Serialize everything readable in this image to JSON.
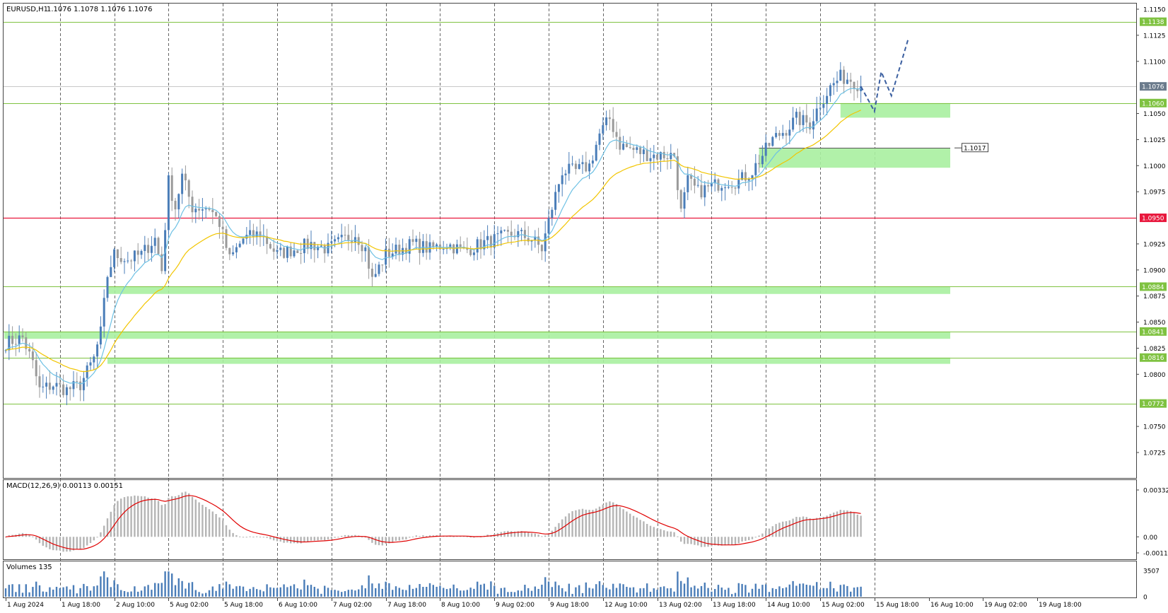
{
  "symbol_label": "EURUSD,H1",
  "ohlc_label": "1.1076 1.1078 1.1076 1.1076",
  "macd_label": "MACD(12,26,9) 0.00113 0.00151",
  "volume_label": "Volumes 135",
  "colors": {
    "bull": "#4a7db8",
    "bear": "#9a9a9a",
    "signal": "#e00000",
    "ema_fast": "#6ec1e4",
    "ema_slow": "#f2c500",
    "level_line": "#7fc241",
    "red_level": "#e8173c",
    "zone": "#a8f0a0",
    "current_price_tag": "#6b7b8c",
    "forecast": "#3b5fa0"
  },
  "chart_data": {
    "type": "candlestick",
    "ylim": [
      1.0715,
      1.1165
    ],
    "price_ticks": [
      "1.1150",
      "1.1125",
      "1.1100",
      "1.1050",
      "1.1025",
      "1.1000",
      "1.0975",
      "1.0925",
      "1.0900",
      "1.0875",
      "1.0850",
      "1.0825",
      "1.0800",
      "1.0750",
      "1.0725"
    ],
    "time_labels": [
      "1 Aug 2024",
      "1 Aug 18:00",
      "2 Aug 10:00",
      "5 Aug 02:00",
      "5 Aug 18:00",
      "6 Aug 10:00",
      "7 Aug 02:00",
      "7 Aug 18:00",
      "8 Aug 10:00",
      "9 Aug 02:00",
      "9 Aug 18:00",
      "12 Aug 10:00",
      "13 Aug 02:00",
      "13 Aug 18:00",
      "14 Aug 10:00",
      "15 Aug 02:00",
      "15 Aug 18:00",
      "16 Aug 10:00",
      "19 Aug 02:00",
      "19 Aug 18:00"
    ],
    "level_tags": [
      {
        "value": 1.1138,
        "label": "1.1138"
      },
      {
        "value": 1.106,
        "label": "1.1060"
      },
      {
        "value": 1.0884,
        "label": "1.0884"
      },
      {
        "value": 1.0841,
        "label": "1.0841"
      },
      {
        "value": 1.0816,
        "label": "1.0816"
      },
      {
        "value": 1.0772,
        "label": "1.0772"
      }
    ],
    "red_level": {
      "value": 1.095,
      "label": "1.0950"
    },
    "current_price": {
      "value": 1.1076,
      "label": "1.1076"
    },
    "callout": {
      "value": 1.1017,
      "label": "1.1017"
    },
    "zones": [
      {
        "from": 1.0877,
        "to": 1.0884
      },
      {
        "from": 1.0834,
        "to": 1.0841
      },
      {
        "from": 1.081,
        "to": 1.0816
      },
      {
        "from": 1.1046,
        "to": 1.106
      },
      {
        "from": 1.0998,
        "to": 1.1017
      }
    ],
    "anchors": [
      [
        0,
        1.083
      ],
      [
        5,
        1.0835
      ],
      [
        8,
        1.081
      ],
      [
        10,
        1.0785
      ],
      [
        14,
        1.079
      ],
      [
        18,
        1.0785
      ],
      [
        22,
        1.079
      ],
      [
        26,
        1.0815
      ],
      [
        28,
        1.084
      ],
      [
        30,
        1.0895
      ],
      [
        32,
        1.0915
      ],
      [
        36,
        1.091
      ],
      [
        40,
        1.0915
      ],
      [
        44,
        1.093
      ],
      [
        46,
        1.09
      ],
      [
        48,
        1.0985
      ],
      [
        50,
        1.096
      ],
      [
        52,
        1.099
      ],
      [
        55,
        1.096
      ],
      [
        60,
        1.096
      ],
      [
        63,
        1.0945
      ],
      [
        66,
        1.091
      ],
      [
        70,
        1.093
      ],
      [
        75,
        1.0935
      ],
      [
        80,
        1.0915
      ],
      [
        85,
        1.092
      ],
      [
        90,
        1.0925
      ],
      [
        95,
        1.092
      ],
      [
        100,
        1.093
      ],
      [
        103,
        1.0935
      ],
      [
        106,
        1.092
      ],
      [
        108,
        1.089
      ],
      [
        112,
        1.0915
      ],
      [
        116,
        1.092
      ],
      [
        120,
        1.0925
      ],
      [
        125,
        1.092
      ],
      [
        130,
        1.0925
      ],
      [
        135,
        1.0918
      ],
      [
        140,
        1.0925
      ],
      [
        145,
        1.093
      ],
      [
        150,
        1.0935
      ],
      [
        155,
        1.093
      ],
      [
        158,
        1.092
      ],
      [
        161,
        1.096
      ],
      [
        164,
        1.0995
      ],
      [
        168,
        1.0995
      ],
      [
        172,
        1.1
      ],
      [
        175,
        1.103
      ],
      [
        178,
        1.1045
      ],
      [
        181,
        1.102
      ],
      [
        185,
        1.1015
      ],
      [
        190,
        1.101
      ],
      [
        193,
        1.101
      ],
      [
        197,
        1.101
      ],
      [
        199,
        1.0955
      ],
      [
        201,
        1.0985
      ],
      [
        204,
        1.0975
      ],
      [
        208,
        1.098
      ],
      [
        212,
        1.0985
      ],
      [
        216,
        1.0985
      ],
      [
        220,
        1.0995
      ],
      [
        223,
        1.101
      ],
      [
        226,
        1.1025
      ],
      [
        230,
        1.1035
      ],
      [
        233,
        1.1045
      ],
      [
        237,
        1.104
      ],
      [
        240,
        1.106
      ],
      [
        243,
        1.1075
      ],
      [
        246,
        1.1085
      ],
      [
        249,
        1.1083
      ],
      [
        252,
        1.1076
      ]
    ],
    "candle_count": 253,
    "forecast": [
      {
        "bar": 252,
        "price": 1.1076
      },
      {
        "bar": 256,
        "price": 1.1052
      },
      {
        "bar": 258,
        "price": 1.109
      },
      {
        "bar": 261,
        "price": 1.1067
      },
      {
        "bar": 266,
        "price": 1.1122
      }
    ],
    "macd": {
      "ylim": [
        -0.00114,
        0.00332
      ],
      "ticks": [
        {
          "value": 0.00332,
          "label": "0.00332"
        },
        {
          "value": 0,
          "label": "0.00"
        },
        {
          "value": -0.00114,
          "label": "-0.00114"
        }
      ]
    },
    "volumes": {
      "ylim": [
        0,
        3507
      ],
      "ticks": [
        {
          "value": 3507,
          "label": "3507"
        },
        {
          "value": 0,
          "label": "0"
        }
      ]
    }
  }
}
